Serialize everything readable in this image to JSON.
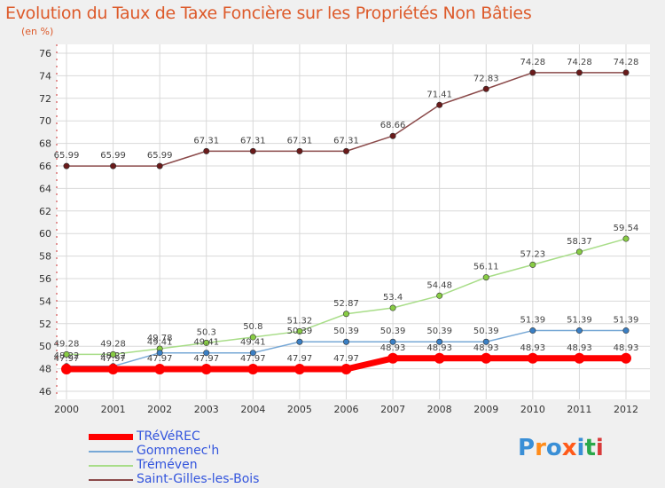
{
  "header": {
    "title": "Evolution du Taux de Taxe Foncière sur les Propriétés Non Bâties",
    "unit": "(en %)"
  },
  "logo": {
    "text": "Proxiti"
  },
  "colors": {
    "background": "#f0f0f0",
    "plot_background": "#ffffff",
    "grid": "#d9d9d9",
    "title": "#dd5a2a",
    "legend_text": "#3355dd"
  },
  "chart_data": {
    "type": "line",
    "title": "Evolution du Taux de Taxe Foncière sur les Propriétés Non Bâties",
    "ylabel": "(en %)",
    "xlabel": "",
    "x": [
      "2000",
      "2001",
      "2002",
      "2003",
      "2004",
      "2005",
      "2006",
      "2007",
      "2008",
      "2009",
      "2010",
      "2011",
      "2012"
    ],
    "ylim": [
      46,
      76
    ],
    "yticks": [
      46,
      48,
      50,
      52,
      54,
      56,
      58,
      60,
      62,
      64,
      66,
      68,
      70,
      72,
      74,
      76
    ],
    "grid": true,
    "legend_position": "bottom-left",
    "series": [
      {
        "name": "TRéVéREC",
        "color": "#ff0000",
        "marker": "#ff0000",
        "width": 7,
        "values": [
          47.97,
          47.97,
          47.97,
          47.97,
          47.97,
          47.97,
          47.97,
          48.93,
          48.93,
          48.93,
          48.93,
          48.93,
          48.93
        ],
        "labels": [
          "47.97",
          "47.97",
          "47.97",
          "47.97",
          "47.97",
          "47.97",
          "47.97",
          "48.93",
          "48.93",
          "48.93",
          "48.93",
          "48.93",
          "48.93"
        ]
      },
      {
        "name": "Gommenec'h",
        "color": "#77a8d6",
        "marker": "#3a7fc4",
        "width": 1.5,
        "values": [
          48.22,
          48.22,
          49.41,
          49.41,
          49.41,
          50.39,
          50.39,
          50.39,
          50.39,
          50.39,
          51.39,
          51.39,
          51.39
        ],
        "labels": [
          "48.22",
          "48.22",
          "49.41",
          "49.41",
          "49.41",
          "50.39",
          "50.39",
          "50.39",
          "50.39",
          "50.39",
          "51.39",
          "51.39",
          "51.39"
        ]
      },
      {
        "name": "Tréméven",
        "color": "#a8dd88",
        "marker": "#88cc44",
        "width": 1.5,
        "values": [
          49.28,
          49.28,
          49.78,
          50.3,
          50.8,
          51.32,
          52.87,
          53.4,
          54.48,
          56.11,
          57.23,
          58.37,
          59.54
        ],
        "labels": [
          "49.28",
          "49.28",
          "49.78",
          "50.3",
          "50.8",
          "51.32",
          "52.87",
          "53.4",
          "54.48",
          "56.11",
          "57.23",
          "58.37",
          "59.54"
        ]
      },
      {
        "name": "Saint-Gilles-les-Bois",
        "color": "#8b4a4a",
        "marker": "#6a1a1a",
        "width": 1.5,
        "values": [
          65.99,
          65.99,
          65.99,
          67.31,
          67.31,
          67.31,
          67.31,
          68.66,
          71.41,
          72.83,
          74.28,
          74.28,
          74.28
        ],
        "labels": [
          "65.99",
          "65.99",
          "65.99",
          "67.31",
          "67.31",
          "67.31",
          "67.31",
          "68.66",
          "71.41",
          "72.83",
          "74.28",
          "74.28",
          "74.28"
        ]
      }
    ]
  }
}
